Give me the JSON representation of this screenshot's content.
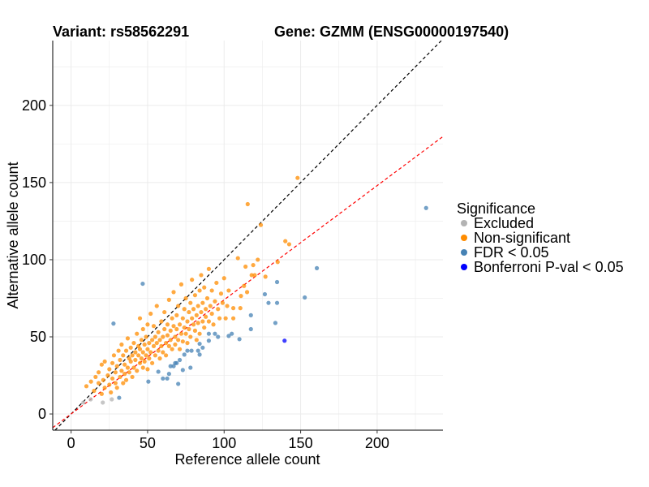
{
  "header": {
    "variant_title": "Variant: rs58562291",
    "gene_title": "Gene: GZMM (ENSG00000197540)"
  },
  "chart_data": {
    "type": "scatter",
    "xlabel": "Reference allele count",
    "ylabel": "Alternative allele count",
    "xlim": [
      -12,
      243
    ],
    "ylim": [
      -10.5,
      242
    ],
    "xticks": [
      0,
      50,
      100,
      150,
      200
    ],
    "yticks": [
      0,
      50,
      100,
      150,
      200
    ],
    "xtick_labels": [
      "0",
      "50",
      "100",
      "150",
      "200"
    ],
    "ytick_labels": [
      "0",
      "50",
      "100",
      "150",
      "200"
    ],
    "grid": true,
    "reference_lines": [
      {
        "name": "identity",
        "slope": 1,
        "intercept": 0,
        "color": "#000000",
        "style": "dashed"
      },
      {
        "name": "fit",
        "slope": 0.74,
        "intercept": 0,
        "color": "#ff0000",
        "style": "dashed"
      }
    ],
    "legend": {
      "title": "Significance",
      "placement": "right",
      "entries": [
        {
          "label": "Excluded",
          "color": "#b3b3b3"
        },
        {
          "label": "Non-significant",
          "color": "#ff8c00"
        },
        {
          "label": "FDR < 0.05",
          "color": "#4682b4"
        },
        {
          "label": "Bonferroni P-val < 0.05",
          "color": "#0000ff"
        }
      ]
    },
    "series": [
      {
        "name": "Excluded",
        "color": "#b3b3b3",
        "points": [
          [
            8,
            7.4
          ],
          [
            12.8,
            9.5
          ],
          [
            20.7,
            7.4
          ],
          [
            26.6,
            9.5
          ]
        ]
      },
      {
        "name": "Non-significant",
        "color": "#ff8c00",
        "points": [
          [
            10,
            18
          ],
          [
            13,
            21
          ],
          [
            15,
            15
          ],
          [
            16,
            24
          ],
          [
            18,
            20
          ],
          [
            18,
            27
          ],
          [
            20,
            13
          ],
          [
            20,
            32
          ],
          [
            21,
            22
          ],
          [
            22,
            17
          ],
          [
            22,
            34
          ],
          [
            24,
            25
          ],
          [
            25,
            19
          ],
          [
            25,
            29
          ],
          [
            26,
            14
          ],
          [
            27,
            23
          ],
          [
            27,
            33
          ],
          [
            28,
            38
          ],
          [
            29,
            20
          ],
          [
            29,
            27
          ],
          [
            30,
            31
          ],
          [
            30,
            17
          ],
          [
            31,
            41
          ],
          [
            32,
            24
          ],
          [
            32,
            35
          ],
          [
            33,
            28
          ],
          [
            33,
            45
          ],
          [
            34,
            20
          ],
          [
            34,
            38
          ],
          [
            35,
            32
          ],
          [
            35,
            26
          ],
          [
            36,
            41
          ],
          [
            36,
            22
          ],
          [
            37,
            30
          ],
          [
            37,
            49
          ],
          [
            38,
            36
          ],
          [
            38,
            27
          ],
          [
            39,
            43
          ],
          [
            39,
            34
          ],
          [
            40,
            24
          ],
          [
            40,
            38
          ],
          [
            41,
            30
          ],
          [
            41,
            46
          ],
          [
            42,
            35
          ],
          [
            42,
            40
          ],
          [
            43,
            28
          ],
          [
            43,
            52
          ],
          [
            44,
            38
          ],
          [
            44,
            44
          ],
          [
            45,
            33
          ],
          [
            45,
            42
          ],
          [
            45,
            62
          ],
          [
            46,
            36
          ],
          [
            46,
            48
          ],
          [
            47,
            30
          ],
          [
            47,
            40
          ],
          [
            47,
            55
          ],
          [
            48,
            45
          ],
          [
            48,
            34
          ],
          [
            49,
            38
          ],
          [
            49,
            50
          ],
          [
            50,
            42
          ],
          [
            50,
            29
          ],
          [
            50,
            58
          ],
          [
            51,
            46
          ],
          [
            51,
            36
          ],
          [
            52,
            40
          ],
          [
            52,
            65
          ],
          [
            53,
            48
          ],
          [
            53,
            33
          ],
          [
            54,
            44
          ],
          [
            54,
            57
          ],
          [
            55,
            38
          ],
          [
            55,
            50
          ],
          [
            56,
            46
          ],
          [
            56,
            70
          ],
          [
            57,
            41
          ],
          [
            57,
            53
          ],
          [
            58,
            36
          ],
          [
            58,
            48
          ],
          [
            59,
            60
          ],
          [
            59,
            44
          ],
          [
            60,
            50
          ],
          [
            60,
            40
          ],
          [
            61,
            55
          ],
          [
            61,
            66
          ],
          [
            62,
            46
          ],
          [
            62,
            38
          ],
          [
            63,
            58
          ],
          [
            63,
            51
          ],
          [
            64,
            44
          ],
          [
            64,
            74
          ],
          [
            65,
            54
          ],
          [
            65,
            48
          ],
          [
            66,
            62
          ],
          [
            66,
            42
          ],
          [
            67,
            57
          ],
          [
            67,
            79
          ],
          [
            68,
            50
          ],
          [
            68,
            45
          ],
          [
            69,
            64
          ],
          [
            69,
            55
          ],
          [
            70,
            48
          ],
          [
            70,
            70
          ],
          [
            71,
            58
          ],
          [
            71,
            42
          ],
          [
            72,
            52
          ],
          [
            72,
            84
          ],
          [
            73,
            62
          ],
          [
            73,
            47
          ],
          [
            74,
            68
          ],
          [
            74,
            56
          ],
          [
            75,
            52
          ],
          [
            75,
            75
          ],
          [
            76,
            60
          ],
          [
            76,
            46
          ],
          [
            77,
            66
          ],
          [
            77,
            55
          ],
          [
            78,
            72
          ],
          [
            78,
            50
          ],
          [
            79,
            62
          ],
          [
            79,
            87
          ],
          [
            80,
            58
          ],
          [
            80,
            68
          ],
          [
            81,
            54
          ],
          [
            81,
            77
          ],
          [
            82,
            64
          ],
          [
            82,
            48
          ],
          [
            83,
            70
          ],
          [
            83,
            59
          ],
          [
            84,
            80
          ],
          [
            84,
            52
          ],
          [
            85,
            66
          ],
          [
            85,
            90
          ],
          [
            86,
            60
          ],
          [
            86,
            72
          ],
          [
            87,
            56
          ],
          [
            87,
            82
          ],
          [
            88,
            68
          ],
          [
            88,
            63
          ],
          [
            89,
            75
          ],
          [
            90,
            60
          ],
          [
            90,
            94
          ],
          [
            91,
            70
          ],
          [
            92,
            65
          ],
          [
            92,
            80
          ],
          [
            93,
            58
          ],
          [
            94,
            73
          ],
          [
            95,
            85
          ],
          [
            96,
            68
          ],
          [
            97,
            62
          ],
          [
            98,
            78
          ],
          [
            99,
            72
          ],
          [
            100,
            88
          ],
          [
            102,
            70
          ],
          [
            103,
            80
          ],
          [
            148,
            153
          ],
          [
            115.4,
            136
          ],
          [
            124,
            122.5
          ],
          [
            140,
            112
          ],
          [
            142.5,
            110
          ],
          [
            109,
            101
          ],
          [
            122,
            100
          ],
          [
            114,
            95.5
          ],
          [
            119,
            96.5
          ],
          [
            135,
            98.5
          ],
          [
            118,
            90
          ],
          [
            120,
            90
          ],
          [
            127,
            89
          ],
          [
            113,
            83
          ],
          [
            115,
            79
          ],
          [
            111,
            76.5
          ],
          [
            110.6,
            68.6
          ],
          [
            106,
            68.6
          ],
          [
            101,
            62
          ],
          [
            106,
            62
          ]
        ]
      },
      {
        "name": "FDR < 0.05",
        "color": "#4682b4",
        "points": [
          [
            232,
            133.5
          ],
          [
            160.6,
            94.5
          ],
          [
            152.7,
            75.5
          ],
          [
            134.6,
            85.5
          ],
          [
            126.6,
            77.6
          ],
          [
            129,
            72
          ],
          [
            134.6,
            72
          ],
          [
            117.5,
            64
          ],
          [
            133.5,
            59
          ],
          [
            117.5,
            55
          ],
          [
            105,
            52
          ],
          [
            103,
            50.6
          ],
          [
            110,
            48.5
          ],
          [
            46.8,
            84.4
          ],
          [
            27.7,
            58.6
          ],
          [
            31.4,
            10.5
          ],
          [
            50.5,
            21
          ],
          [
            57,
            27.4
          ],
          [
            60,
            23
          ],
          [
            62.8,
            23
          ],
          [
            64,
            26
          ],
          [
            70,
            19.5
          ],
          [
            65,
            31
          ],
          [
            67,
            31
          ],
          [
            68,
            33
          ],
          [
            69,
            33
          ],
          [
            71,
            35
          ],
          [
            73,
            28.5
          ],
          [
            74,
            38.5
          ],
          [
            76,
            41
          ],
          [
            78.7,
            41
          ],
          [
            78,
            30
          ],
          [
            83,
            41
          ],
          [
            84,
            45.5
          ],
          [
            84,
            38.5
          ],
          [
            86,
            43
          ],
          [
            90,
            52
          ],
          [
            90,
            47.5
          ],
          [
            94,
            52
          ],
          [
            96,
            50
          ]
        ]
      },
      {
        "name": "Bonferroni P-val < 0.05",
        "color": "#0000ff",
        "points": [
          [
            139.5,
            47.5
          ]
        ]
      }
    ]
  }
}
